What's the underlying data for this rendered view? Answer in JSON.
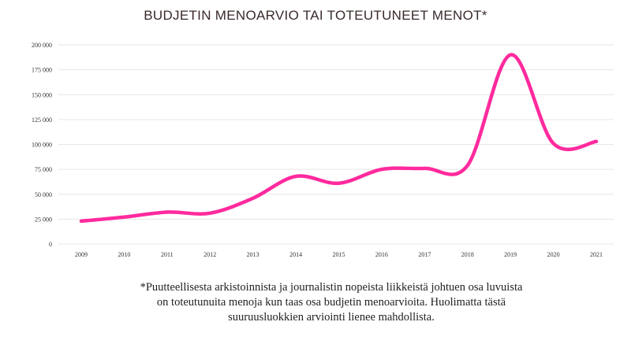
{
  "chart_data": {
    "type": "line",
    "title": "BUDJETIN MENOARVIO TAI TOTEUTUNEET MENOT*",
    "categories": [
      "2009",
      "2010",
      "2011",
      "2012",
      "2013",
      "2014",
      "2015",
      "2016",
      "2017",
      "2018",
      "2019",
      "2020",
      "2021"
    ],
    "series": [
      {
        "values": [
          23000,
          27000,
          32000,
          31000,
          46000,
          68000,
          61000,
          75000,
          76000,
          79000,
          190000,
          101000,
          103000
        ]
      }
    ],
    "ylim": [
      0,
      200000
    ],
    "yticks": [
      {
        "value": 0,
        "label": "0"
      },
      {
        "value": 25000,
        "label": "25 000"
      },
      {
        "value": 50000,
        "label": "50 000"
      },
      {
        "value": 75000,
        "label": "75 000"
      },
      {
        "value": 100000,
        "label": "100 000"
      },
      {
        "value": 125000,
        "label": "125 000"
      },
      {
        "value": 150000,
        "label": "150 000"
      },
      {
        "value": 175000,
        "label": "175 000"
      },
      {
        "value": 200000,
        "label": "200 000"
      }
    ],
    "grid": true,
    "line_color": "#ff2a9d",
    "grid_color": "#e6e6e6"
  },
  "footnote": {
    "lines": [
      "*Puutteellisesta arkistoinnista ja journalistin nopeista liikkeistä johtuen osa luvuista",
      "on toteutunuita menoja kun taas osa budjetin menoarvioita. Huolimatta tästä",
      "suuruusluokkien arviointi lienee mahdollista."
    ]
  }
}
